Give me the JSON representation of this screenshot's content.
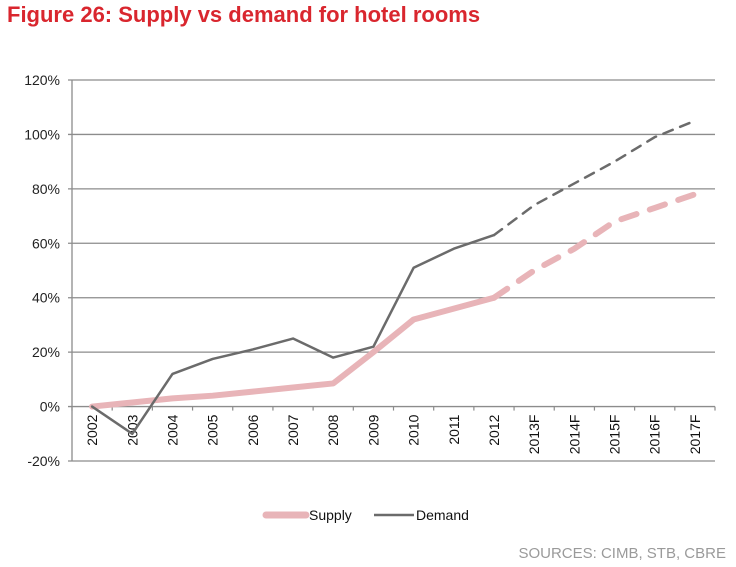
{
  "chart_data": {
    "type": "line",
    "title": "Figure 26: Supply vs demand for hotel rooms",
    "xlabel": "",
    "ylabel": "",
    "categories": [
      "2002",
      "2003",
      "2004",
      "2005",
      "2006",
      "2007",
      "2008",
      "2009",
      "2010",
      "2011",
      "2012",
      "2013F",
      "2014F",
      "2015F",
      "2016F",
      "2017F"
    ],
    "ylim": [
      -20,
      120
    ],
    "yticks": [
      -20,
      0,
      20,
      40,
      60,
      80,
      100,
      120
    ],
    "ytick_labels": [
      "-20%",
      "0%",
      "20%",
      "40%",
      "60%",
      "80%",
      "100%",
      "120%"
    ],
    "grid": true,
    "forecast_start_index": 10,
    "series": [
      {
        "name": "Supply",
        "color": "#e8b4b8",
        "values": [
          0,
          1.5,
          3,
          4,
          5.5,
          7,
          8.5,
          20,
          32,
          36,
          40,
          50,
          58,
          68,
          73,
          78
        ]
      },
      {
        "name": "Demand",
        "color": "#6b6b6b",
        "values": [
          0,
          -10,
          12,
          17.5,
          21,
          25,
          18,
          22,
          51,
          58,
          63,
          74,
          82,
          90,
          99,
          105
        ]
      }
    ],
    "legend": {
      "position": "bottom",
      "entries": [
        "Supply",
        "Demand"
      ]
    },
    "source": "SOURCES: CIMB, STB, CBRE"
  }
}
